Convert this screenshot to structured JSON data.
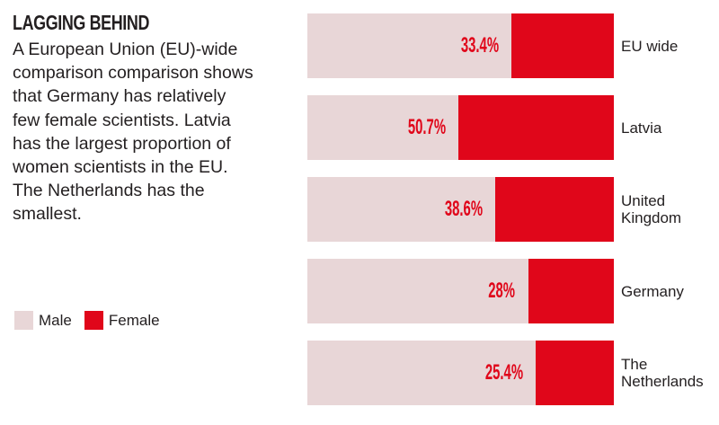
{
  "chart_data": {
    "type": "bar",
    "orientation": "horizontal-stacked-100",
    "title": "LAGGING BEHIND",
    "description": "A European Union (EU)-wide comparison comparison shows that Germany has relatively few female scientists. Latvia has the largest proportion of women scientists in the EU. The Netherlands has the smallest.",
    "categories": [
      "EU wide",
      "Latvia",
      "United Kingdom",
      "Germany",
      "The Netherlands"
    ],
    "category_lines": [
      [
        "EU wide"
      ],
      [
        "Latvia"
      ],
      [
        "United",
        "Kingdom"
      ],
      [
        "Germany"
      ],
      [
        "The",
        "Netherlands"
      ]
    ],
    "series": [
      {
        "name": "Male",
        "values": [
          66.6,
          49.3,
          61.4,
          72,
          74.6
        ],
        "color": "#e8d6d7"
      },
      {
        "name": "Female",
        "values": [
          33.4,
          50.7,
          38.6,
          28,
          25.4
        ],
        "color": "#e0061a"
      }
    ],
    "data_labels": [
      "33.4%",
      "50.7%",
      "38.6%",
      "28%",
      "25.4%"
    ],
    "legend": {
      "placement": "bottom-left",
      "entries": [
        "Male",
        "Female"
      ]
    },
    "xlim": [
      0,
      100
    ]
  }
}
